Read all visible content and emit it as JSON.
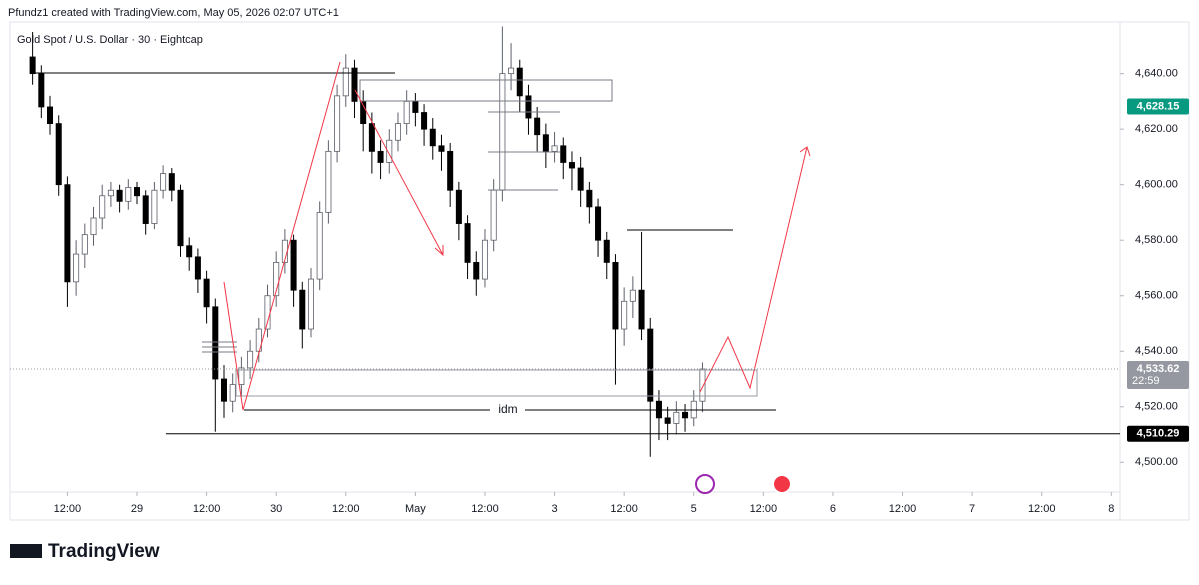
{
  "header": "Pfundz1 created with TradingView.com, May 05, 2026 02:07 UTC+1",
  "logo": "TradingView",
  "chart_data": {
    "type": "candlestick",
    "title": "Gold Spot / U.S. Dollar · 30 · Eightcap",
    "up_color": "#ffffff",
    "up_edge": "#5d606b",
    "down_color": "#000000",
    "open": [
      4646,
      4640,
      4628,
      4622,
      4600,
      4565,
      4575,
      4582,
      4588,
      4596,
      4598,
      4594,
      4599,
      4596,
      4586,
      4598,
      4604,
      4598,
      4578,
      4574,
      4566,
      4556,
      4530,
      4522,
      4528,
      4534,
      4540,
      4548,
      4560,
      4572,
      4580,
      4562,
      4548,
      4566,
      4590,
      4612,
      4632,
      4642,
      4630,
      4622,
      4612,
      4608,
      4616,
      4622,
      4630,
      4626,
      4620,
      4614,
      4612,
      4598,
      4586,
      4572,
      4566,
      4580,
      4598,
      4640,
      4642,
      4632,
      4624,
      4618,
      4612,
      4614,
      4608,
      4606,
      4598,
      4592,
      4580,
      4572,
      4548,
      4558,
      4562,
      4548,
      4522,
      4516,
      4514,
      4518,
      4516,
      4522
    ],
    "high": [
      4655,
      4643,
      4632,
      4625,
      4603,
      4580,
      4586,
      4592,
      4600,
      4601,
      4600,
      4602,
      4601,
      4598,
      4601,
      4607,
      4606,
      4600,
      4581,
      4577,
      4569,
      4559,
      4535,
      4532,
      4538,
      4544,
      4552,
      4564,
      4576,
      4584,
      4582,
      4565,
      4570,
      4594,
      4616,
      4636,
      4647,
      4645,
      4634,
      4626,
      4616,
      4620,
      4626,
      4634,
      4633,
      4629,
      4624,
      4618,
      4615,
      4601,
      4589,
      4576,
      4584,
      4602,
      4657,
      4651,
      4645,
      4636,
      4628,
      4622,
      4619,
      4617,
      4612,
      4610,
      4601,
      4595,
      4583,
      4575,
      4563,
      4567,
      4583,
      4552,
      4526,
      4520,
      4522,
      4521,
      4526,
      4536
    ],
    "low": [
      4636,
      4624,
      4618,
      4596,
      4556,
      4560,
      4570,
      4578,
      4584,
      4592,
      4590,
      4591,
      4593,
      4582,
      4584,
      4595,
      4594,
      4574,
      4569,
      4561,
      4550,
      4511,
      4516,
      4518,
      4524,
      4530,
      4536,
      4545,
      4556,
      4568,
      4556,
      4541,
      4545,
      4562,
      4586,
      4608,
      4628,
      4624,
      4612,
      4604,
      4602,
      4604,
      4612,
      4618,
      4621,
      4614,
      4609,
      4605,
      4592,
      4580,
      4566,
      4560,
      4563,
      4576,
      4594,
      4634,
      4626,
      4618,
      4612,
      4606,
      4608,
      4602,
      4598,
      4592,
      4586,
      4574,
      4566,
      4528,
      4542,
      4552,
      4544,
      4502,
      4508,
      4508,
      4510,
      4511,
      4513,
      4518
    ],
    "close": [
      4640,
      4628,
      4622,
      4600,
      4565,
      4575,
      4582,
      4588,
      4596,
      4598,
      4594,
      4599,
      4596,
      4586,
      4598,
      4604,
      4598,
      4578,
      4574,
      4566,
      4556,
      4530,
      4522,
      4528,
      4534,
      4540,
      4548,
      4560,
      4572,
      4580,
      4562,
      4548,
      4566,
      4590,
      4612,
      4632,
      4642,
      4630,
      4622,
      4612,
      4608,
      4616,
      4622,
      4630,
      4626,
      4620,
      4614,
      4612,
      4598,
      4586,
      4572,
      4566,
      4580,
      4598,
      4640,
      4642,
      4632,
      4624,
      4618,
      4612,
      4614,
      4608,
      4606,
      4598,
      4592,
      4580,
      4572,
      4548,
      4558,
      4562,
      4548,
      4522,
      4516,
      4514,
      4518,
      4516,
      4522,
      4533.62
    ],
    "xlim": [
      -2.6,
      125
    ],
    "xticks": [
      {
        "value": 4,
        "label": "12:00"
      },
      {
        "value": 12,
        "label": "29"
      },
      {
        "value": 20,
        "label": "12:00"
      },
      {
        "value": 28,
        "label": "30"
      },
      {
        "value": 36,
        "label": "12:00"
      },
      {
        "value": 44,
        "label": "May"
      },
      {
        "value": 52,
        "label": "12:00"
      },
      {
        "value": 60,
        "label": "3"
      },
      {
        "value": 68,
        "label": "12:00"
      },
      {
        "value": 76,
        "label": "5"
      },
      {
        "value": 84,
        "label": "12:00"
      },
      {
        "value": 92,
        "label": "6"
      },
      {
        "value": 100,
        "label": "12:00"
      },
      {
        "value": 108,
        "label": "7"
      },
      {
        "value": 116,
        "label": "12:00"
      },
      {
        "value": 124,
        "label": "8"
      }
    ],
    "ylim": [
      4489.3,
      4658.6
    ],
    "yticks": [
      {
        "value": 4500,
        "label": "4,500.00"
      },
      {
        "value": 4520,
        "label": "4,520.00"
      },
      {
        "value": 4540,
        "label": "4,540.00"
      },
      {
        "value": 4560,
        "label": "4,560.00"
      },
      {
        "value": 4580,
        "label": "4,580.00"
      },
      {
        "value": 4600,
        "label": "4,600.00"
      },
      {
        "value": 4620,
        "label": "4,620.00"
      },
      {
        "value": 4640,
        "label": "4,640.00"
      }
    ],
    "price_labels": [
      {
        "value": 4628.15,
        "label": "4,628.15",
        "color": "#089981"
      },
      {
        "value": 4533.62,
        "label": "4,533.62",
        "sublabel": "22:59",
        "color": "#9598a1"
      },
      {
        "value": 4510.29,
        "label": "4,510.29",
        "color": "#000000"
      }
    ],
    "annotation": "idm"
  }
}
